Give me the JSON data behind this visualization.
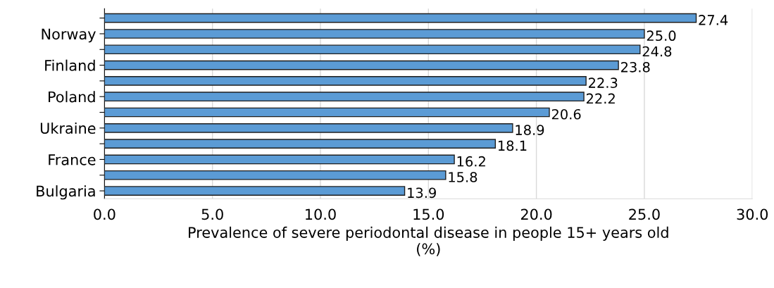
{
  "chart_data": {
    "type": "bar",
    "orientation": "horizontal",
    "xlabel": "Prevalence of severe periodontal disease in people 15+ years old\n(%)",
    "categories": [
      null,
      "Norway",
      null,
      "Finland",
      null,
      "Poland",
      null,
      "Ukraine",
      null,
      "France",
      null,
      "Bulgaria"
    ],
    "values": [
      27.4,
      25.0,
      24.8,
      23.8,
      22.3,
      22.2,
      20.6,
      18.9,
      18.1,
      16.2,
      15.8,
      13.9
    ],
    "value_labels": [
      "27.4",
      "25.0",
      "24.8",
      "23.8",
      "22.3",
      "22.2",
      "20.6",
      "18.9",
      "18.1",
      "16.2",
      "15.8",
      "13.9"
    ],
    "color": "#5b9bd5",
    "xlim": [
      0,
      30
    ],
    "xticks": [
      {
        "value": 0,
        "label": "0.0"
      },
      {
        "value": 5,
        "label": "5.0"
      },
      {
        "value": 10,
        "label": "10.0"
      },
      {
        "value": 15,
        "label": "15.0"
      },
      {
        "value": 20,
        "label": "20.0"
      },
      {
        "value": 25,
        "label": "25.0"
      },
      {
        "value": 30,
        "label": "30.0"
      }
    ],
    "grid": "x"
  }
}
